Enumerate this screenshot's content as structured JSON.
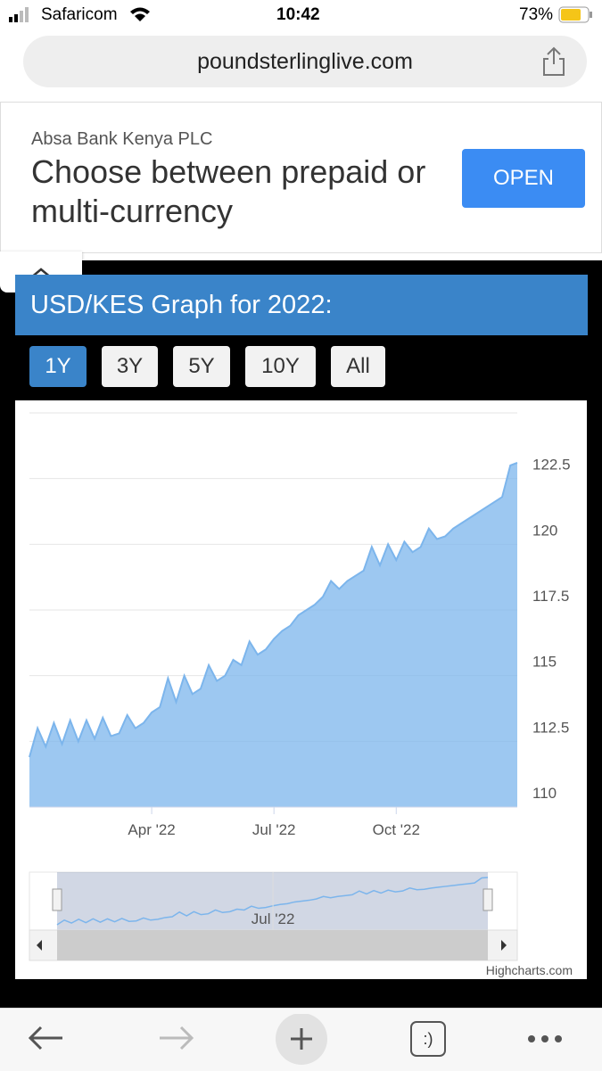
{
  "status_bar": {
    "carrier": "Safaricom",
    "time": "10:42",
    "battery": "73%"
  },
  "browser": {
    "url": "poundsterlinglive.com"
  },
  "ad": {
    "advertiser": "Absa Bank Kenya PLC",
    "headline": "Choose between prepaid or multi-currency",
    "button": "OPEN"
  },
  "section_title": "USD/KES Graph for 2022:",
  "range_buttons": [
    "1Y",
    "3Y",
    "5Y",
    "10Y",
    "All"
  ],
  "chart_data": {
    "type": "area",
    "color": "#7cb5ec",
    "x": [
      0,
      0.2,
      0.4,
      0.6,
      0.8,
      1.0,
      1.2,
      1.4,
      1.6,
      1.8,
      2.0,
      2.2,
      2.4,
      2.6,
      2.8,
      3.0,
      3.2,
      3.4,
      3.6,
      3.8,
      4.0,
      4.2,
      4.4,
      4.6,
      4.8,
      5.0,
      5.2,
      5.4,
      5.6,
      5.8,
      6.0,
      6.2,
      6.4,
      6.6,
      6.8,
      7.0,
      7.2,
      7.4,
      7.6,
      7.8,
      8.0,
      8.2,
      8.4,
      8.6,
      8.8,
      9.0,
      9.2,
      9.4,
      9.6,
      9.8,
      10.0,
      10.2,
      10.4,
      10.6,
      10.8,
      11.0,
      11.2,
      11.4,
      11.6,
      11.8,
      11.97
    ],
    "values": [
      111.9,
      113.0,
      112.3,
      113.2,
      112.4,
      113.3,
      112.5,
      113.3,
      112.6,
      113.4,
      112.7,
      112.8,
      113.5,
      113.0,
      113.2,
      113.6,
      113.8,
      114.9,
      114.0,
      115.0,
      114.3,
      114.5,
      115.4,
      114.8,
      115.0,
      115.6,
      115.4,
      116.3,
      115.8,
      116.0,
      116.4,
      116.7,
      116.9,
      117.3,
      117.5,
      117.7,
      118.0,
      118.6,
      118.3,
      118.6,
      118.8,
      119.0,
      119.9,
      119.2,
      120.0,
      119.4,
      120.1,
      119.7,
      119.9,
      120.6,
      120.2,
      120.3,
      120.6,
      120.8,
      121.0,
      121.2,
      121.4,
      121.6,
      121.8,
      123.0,
      123.1
    ],
    "xlim": [
      0,
      11.97
    ],
    "xticks": [
      {
        "value": 3,
        "label": "Apr '22"
      },
      {
        "value": 6,
        "label": "Jul '22"
      },
      {
        "value": 9,
        "label": "Oct '22"
      }
    ],
    "ylim": [
      110,
      125
    ],
    "yticks": [
      110,
      112.5,
      115,
      117.5,
      120,
      122.5
    ],
    "grid": true,
    "credits": "Highcharts.com"
  },
  "toolbar": {
    "tabs_icon": ":)"
  }
}
